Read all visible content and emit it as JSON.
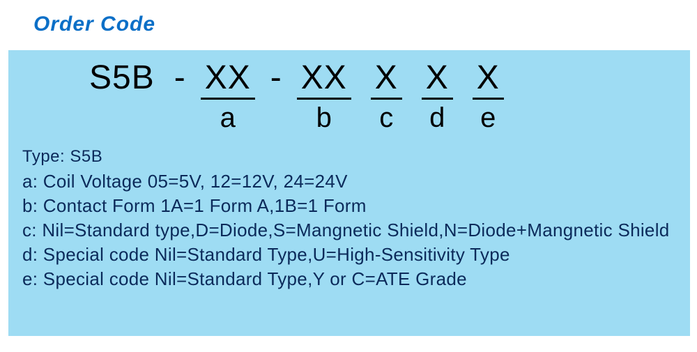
{
  "title": "Order Code",
  "colors": {
    "title": "#0b6fc7",
    "panel_bg": "#9edcf3",
    "code_text": "#000000",
    "desc_text": "#0b2a5a",
    "underline": "#000000",
    "page_bg": "#ffffff"
  },
  "typography": {
    "title_fontsize": 30,
    "code_fontsize": 48,
    "sublabel_fontsize": 40,
    "type_fontsize": 24,
    "desc_fontsize": 26
  },
  "code": {
    "prefix": "S5B",
    "sep1": "-",
    "sep2": "-",
    "slots": [
      {
        "placeholder": "XX",
        "label": "a"
      },
      {
        "placeholder": "XX",
        "label": "b"
      },
      {
        "placeholder": "X",
        "label": "c"
      },
      {
        "placeholder": "X",
        "label": "d"
      },
      {
        "placeholder": "X",
        "label": "e"
      }
    ]
  },
  "type_line": "Type:  S5B",
  "descriptions": [
    "a: Coil Voltage 05=5V, 12=12V, 24=24V",
    "b: Contact Form 1A=1 Form A,1B=1 Form",
    "c: Nil=Standard type,D=Diode,S=Mangnetic Shield,N=Diode+Mangnetic Shield",
    "d: Special code Nil=Standard Type,U=High-Sensitivity Type",
    "e: Special code Nil=Standard Type,Y or C=ATE Grade"
  ],
  "watermark": ""
}
